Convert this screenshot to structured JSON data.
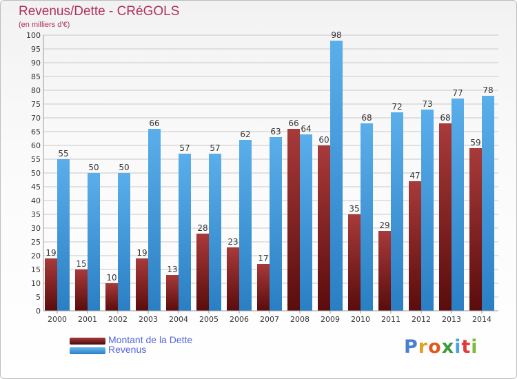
{
  "colors": {
    "debt": "#7d1c1c",
    "revenue": "#3a98df",
    "title": "#b0305a",
    "legend_text": "#5566dd",
    "grid": "#c8c8c8",
    "axis_text": "#333333"
  },
  "legend": {
    "debt_label": "Montant de la Dette",
    "revenue_label": "Revenus"
  },
  "logo": {
    "text": "Proxiti",
    "letter_colors": [
      "#4a7fd0",
      "#e0a020",
      "#e05a20",
      "#3d9a3d",
      "#4aa2e0",
      "#e03a3a",
      "#7cba3a"
    ]
  },
  "chart_data": {
    "type": "bar",
    "title": "Revenus/Dette - CRéGOLS",
    "subtitle": "(en milliers d'€)",
    "xlabel": "",
    "ylabel": "",
    "ylim": [
      0,
      100
    ],
    "ytick_step": 5,
    "grid": true,
    "categories": [
      "2000",
      "2001",
      "2002",
      "2003",
      "2004",
      "2005",
      "2006",
      "2007",
      "2008",
      "2009",
      "2010",
      "2011",
      "2012",
      "2013",
      "2014"
    ],
    "series": [
      {
        "name": "Montant de la Dette",
        "values": [
          19,
          15,
          10,
          19,
          13,
          28,
          23,
          17,
          66,
          60,
          35,
          29,
          47,
          68,
          59
        ]
      },
      {
        "name": "Revenus",
        "values": [
          55,
          50,
          50,
          66,
          57,
          57,
          62,
          63,
          64,
          98,
          68,
          72,
          73,
          77,
          78
        ]
      }
    ]
  }
}
